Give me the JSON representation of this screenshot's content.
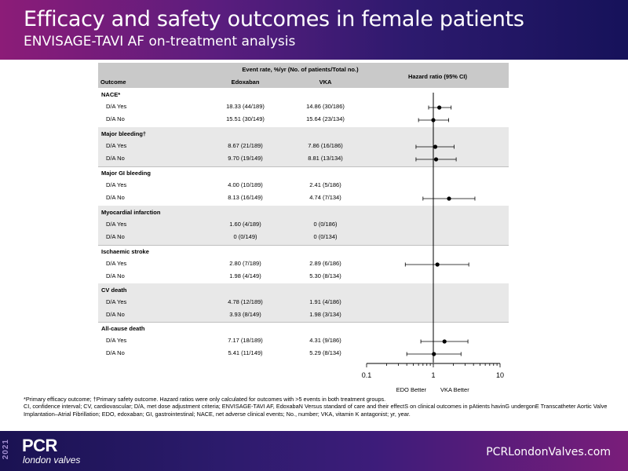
{
  "header": {
    "title": "Efficacy and safety outcomes in female patients",
    "subtitle": "ENVISAGE-TAVI AF on-treatment analysis"
  },
  "table": {
    "event_rate_header": "Event rate, %/yr (No. of patients/Total no.)",
    "col_outcome": "Outcome",
    "col_edoxaban": "Edoxaban",
    "col_vka": "VKA",
    "col_hr": "Hazard ratio (95% CI)",
    "groups": [
      {
        "title": "NACE*",
        "rows": [
          {
            "label": "D/A Yes",
            "edo": "18.33 (44/189)",
            "vka": "14.86 (30/186)"
          },
          {
            "label": "D/A No",
            "edo": "15.51 (30/149)",
            "vka": "15.64 (23/134)"
          }
        ]
      },
      {
        "title": "Major bleeding†",
        "rows": [
          {
            "label": "D/A Yes",
            "edo": "8.67 (21/189)",
            "vka": "7.86 (16/186)"
          },
          {
            "label": "D/A No",
            "edo": "9.70 (19/149)",
            "vka": "8.81 (13/134)"
          }
        ]
      },
      {
        "title": "Major GI bleeding",
        "rows": [
          {
            "label": "D/A Yes",
            "edo": "4.00 (10/189)",
            "vka": "2.41 (5/186)"
          },
          {
            "label": "D/A No",
            "edo": "8.13 (16/149)",
            "vka": "4.74 (7/134)"
          }
        ]
      },
      {
        "title": "Myocardial infarction",
        "rows": [
          {
            "label": "D/A Yes",
            "edo": "1.60 (4/189)",
            "vka": "0 (0/186)"
          },
          {
            "label": "D/A No",
            "edo": "0 (0/149)",
            "vka": "0 (0/134)"
          }
        ]
      },
      {
        "title": "Ischaemic stroke",
        "rows": [
          {
            "label": "D/A Yes",
            "edo": "2.80 (7/189)",
            "vka": "2.89 (6/186)"
          },
          {
            "label": "D/A No",
            "edo": "1.98 (4/149)",
            "vka": "5.30 (8/134)"
          }
        ]
      },
      {
        "title": "CV death",
        "rows": [
          {
            "label": "D/A Yes",
            "edo": "4.78 (12/189)",
            "vka": "1.91 (4/186)"
          },
          {
            "label": "D/A No",
            "edo": "3.93 (8/149)",
            "vka": "1.98 (3/134)"
          }
        ]
      },
      {
        "title": "All-cause death",
        "rows": [
          {
            "label": "D/A Yes",
            "edo": "7.17 (18/189)",
            "vka": "4.31 (9/186)"
          },
          {
            "label": "D/A No",
            "edo": "5.41 (11/149)",
            "vka": "5.29 (8/134)"
          }
        ]
      }
    ]
  },
  "chart_data": {
    "type": "forest",
    "xscale": "log",
    "xlim": [
      0.1,
      10
    ],
    "xticks": [
      "0.1",
      "1",
      "10"
    ],
    "left_label": "EDO Better",
    "right_label": "VKA Better",
    "points": [
      {
        "group": "NACE*",
        "row": "D/A Yes",
        "hr": 1.23,
        "lo": 0.85,
        "hi": 1.85
      },
      {
        "group": "NACE*",
        "row": "D/A No",
        "hr": 1.0,
        "lo": 0.6,
        "hi": 1.7
      },
      {
        "group": "Major bleeding†",
        "row": "D/A Yes",
        "hr": 1.07,
        "lo": 0.55,
        "hi": 2.05
      },
      {
        "group": "Major bleeding†",
        "row": "D/A No",
        "hr": 1.1,
        "lo": 0.55,
        "hi": 2.2
      },
      {
        "group": "Major GI bleeding",
        "row": "D/A No",
        "hr": 1.72,
        "lo": 0.7,
        "hi": 4.2
      },
      {
        "group": "Ischaemic stroke",
        "row": "D/A Yes",
        "hr": 1.15,
        "lo": 0.38,
        "hi": 3.4
      },
      {
        "group": "All-cause death",
        "row": "D/A Yes",
        "hr": 1.47,
        "lo": 0.65,
        "hi": 3.3
      },
      {
        "group": "All-cause death",
        "row": "D/A No",
        "hr": 1.02,
        "lo": 0.4,
        "hi": 2.6
      }
    ]
  },
  "footnotes": {
    "line1": "*Primary efficacy outcome; †Primary safety outcome. Hazard ratios were only calculated for outcomes with >5 events in both treatment groups.",
    "line2": "CI, confidence interval; CV, cardiovascular; D/A, met dose adjustment criteria; ENVISAGE-TAVI AF, EdoxabaN Versus standard of care and their effectS on clinical outcomes in pAtients havinG undergonE Transcatheter Aortic Valve Implantation–Atrial Fibrillation; EDO, edoxaban; GI, gastrointestinal; NACE, net adverse clinical events; No., number; VKA, vitamin K antagonist; yr, year."
  },
  "footer": {
    "year": "2021",
    "logo": "PCR",
    "logo_sub": "london valves",
    "url": "PCRLondonValves.com"
  }
}
